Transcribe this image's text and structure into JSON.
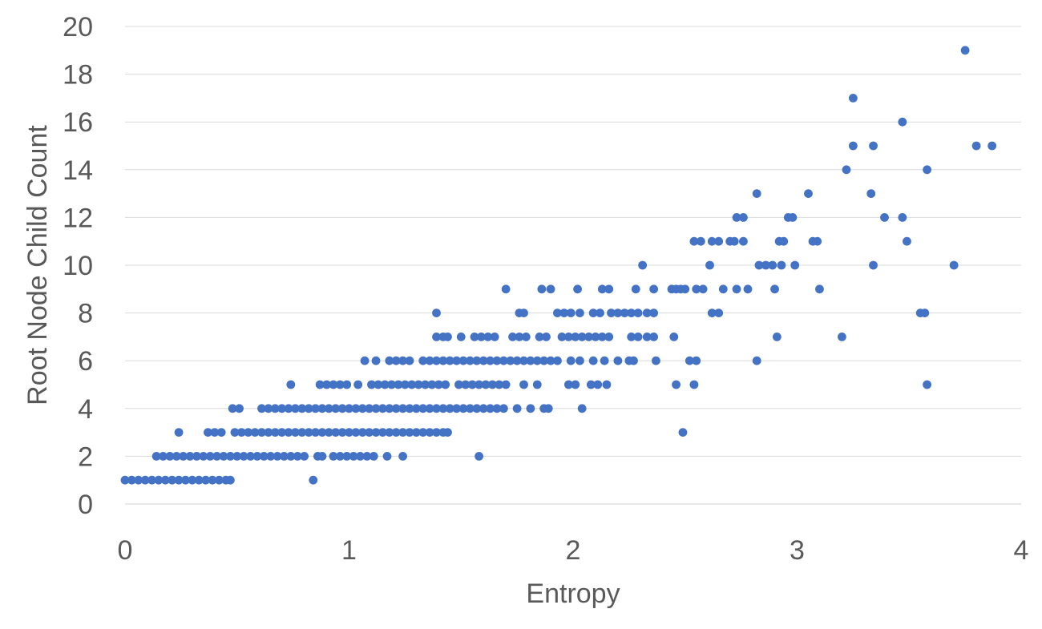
{
  "chart_data": {
    "type": "scatter",
    "title": "",
    "xlabel": "Entropy",
    "ylabel": "Root Node Child Count",
    "xlim": [
      0,
      4
    ],
    "ylim": [
      0,
      20
    ],
    "x_ticks": [
      "0",
      "1",
      "2",
      "3",
      "4"
    ],
    "y_ticks": [
      "0",
      "2",
      "4",
      "6",
      "8",
      "10",
      "12",
      "14",
      "16",
      "18",
      "20"
    ],
    "grid": "horizontal",
    "legend": "none",
    "marker_color": "#4472c4",
    "series": [
      {
        "points": [
          [
            0.0,
            1
          ],
          [
            0.03,
            1
          ],
          [
            0.06,
            1
          ],
          [
            0.09,
            1
          ],
          [
            0.12,
            1
          ],
          [
            0.15,
            1
          ],
          [
            0.18,
            1
          ],
          [
            0.21,
            1
          ],
          [
            0.24,
            1
          ],
          [
            0.27,
            1
          ],
          [
            0.3,
            1
          ],
          [
            0.33,
            1
          ],
          [
            0.36,
            1
          ],
          [
            0.39,
            1
          ],
          [
            0.42,
            1
          ],
          [
            0.45,
            1
          ],
          [
            0.47,
            1
          ],
          [
            0.84,
            1
          ],
          [
            0.14,
            2
          ],
          [
            0.17,
            2
          ],
          [
            0.2,
            2
          ],
          [
            0.23,
            2
          ],
          [
            0.26,
            2
          ],
          [
            0.29,
            2
          ],
          [
            0.32,
            2
          ],
          [
            0.35,
            2
          ],
          [
            0.38,
            2
          ],
          [
            0.41,
            2
          ],
          [
            0.44,
            2
          ],
          [
            0.47,
            2
          ],
          [
            0.5,
            2
          ],
          [
            0.53,
            2
          ],
          [
            0.56,
            2
          ],
          [
            0.59,
            2
          ],
          [
            0.62,
            2
          ],
          [
            0.65,
            2
          ],
          [
            0.68,
            2
          ],
          [
            0.71,
            2
          ],
          [
            0.74,
            2
          ],
          [
            0.77,
            2
          ],
          [
            0.8,
            2
          ],
          [
            0.86,
            2
          ],
          [
            0.88,
            2
          ],
          [
            0.93,
            2
          ],
          [
            0.96,
            2
          ],
          [
            0.99,
            2
          ],
          [
            1.02,
            2
          ],
          [
            1.05,
            2
          ],
          [
            1.08,
            2
          ],
          [
            1.11,
            2
          ],
          [
            1.17,
            2
          ],
          [
            1.24,
            2
          ],
          [
            1.58,
            2
          ],
          [
            0.24,
            3
          ],
          [
            0.37,
            3
          ],
          [
            0.4,
            3
          ],
          [
            0.43,
            3
          ],
          [
            0.49,
            3
          ],
          [
            0.52,
            3
          ],
          [
            0.55,
            3
          ],
          [
            0.58,
            3
          ],
          [
            0.61,
            3
          ],
          [
            0.64,
            3
          ],
          [
            0.67,
            3
          ],
          [
            0.7,
            3
          ],
          [
            0.73,
            3
          ],
          [
            0.76,
            3
          ],
          [
            0.79,
            3
          ],
          [
            0.82,
            3
          ],
          [
            0.85,
            3
          ],
          [
            0.88,
            3
          ],
          [
            0.91,
            3
          ],
          [
            0.94,
            3
          ],
          [
            0.97,
            3
          ],
          [
            1.0,
            3
          ],
          [
            1.03,
            3
          ],
          [
            1.06,
            3
          ],
          [
            1.09,
            3
          ],
          [
            1.12,
            3
          ],
          [
            1.15,
            3
          ],
          [
            1.18,
            3
          ],
          [
            1.21,
            3
          ],
          [
            1.24,
            3
          ],
          [
            1.27,
            3
          ],
          [
            1.3,
            3
          ],
          [
            1.33,
            3
          ],
          [
            1.36,
            3
          ],
          [
            1.39,
            3
          ],
          [
            1.42,
            3
          ],
          [
            1.44,
            3
          ],
          [
            2.49,
            3
          ],
          [
            0.48,
            4
          ],
          [
            0.51,
            4
          ],
          [
            0.61,
            4
          ],
          [
            0.64,
            4
          ],
          [
            0.67,
            4
          ],
          [
            0.7,
            4
          ],
          [
            0.73,
            4
          ],
          [
            0.76,
            4
          ],
          [
            0.79,
            4
          ],
          [
            0.82,
            4
          ],
          [
            0.85,
            4
          ],
          [
            0.88,
            4
          ],
          [
            0.91,
            4
          ],
          [
            0.94,
            4
          ],
          [
            0.97,
            4
          ],
          [
            1.0,
            4
          ],
          [
            1.03,
            4
          ],
          [
            1.06,
            4
          ],
          [
            1.09,
            4
          ],
          [
            1.12,
            4
          ],
          [
            1.15,
            4
          ],
          [
            1.18,
            4
          ],
          [
            1.21,
            4
          ],
          [
            1.24,
            4
          ],
          [
            1.27,
            4
          ],
          [
            1.3,
            4
          ],
          [
            1.33,
            4
          ],
          [
            1.36,
            4
          ],
          [
            1.39,
            4
          ],
          [
            1.42,
            4
          ],
          [
            1.45,
            4
          ],
          [
            1.48,
            4
          ],
          [
            1.51,
            4
          ],
          [
            1.54,
            4
          ],
          [
            1.57,
            4
          ],
          [
            1.6,
            4
          ],
          [
            1.63,
            4
          ],
          [
            1.66,
            4
          ],
          [
            1.69,
            4
          ],
          [
            1.75,
            4
          ],
          [
            1.81,
            4
          ],
          [
            1.87,
            4
          ],
          [
            1.89,
            4
          ],
          [
            2.04,
            4
          ],
          [
            0.74,
            5
          ],
          [
            0.87,
            5
          ],
          [
            0.9,
            5
          ],
          [
            0.93,
            5
          ],
          [
            0.96,
            5
          ],
          [
            0.99,
            5
          ],
          [
            1.04,
            5
          ],
          [
            1.1,
            5
          ],
          [
            1.13,
            5
          ],
          [
            1.16,
            5
          ],
          [
            1.19,
            5
          ],
          [
            1.22,
            5
          ],
          [
            1.25,
            5
          ],
          [
            1.28,
            5
          ],
          [
            1.31,
            5
          ],
          [
            1.34,
            5
          ],
          [
            1.37,
            5
          ],
          [
            1.4,
            5
          ],
          [
            1.43,
            5
          ],
          [
            1.49,
            5
          ],
          [
            1.52,
            5
          ],
          [
            1.55,
            5
          ],
          [
            1.58,
            5
          ],
          [
            1.61,
            5
          ],
          [
            1.64,
            5
          ],
          [
            1.67,
            5
          ],
          [
            1.7,
            5
          ],
          [
            1.78,
            5
          ],
          [
            1.84,
            5
          ],
          [
            1.98,
            5
          ],
          [
            2.01,
            5
          ],
          [
            2.08,
            5
          ],
          [
            2.11,
            5
          ],
          [
            2.15,
            5
          ],
          [
            2.46,
            5
          ],
          [
            2.54,
            5
          ],
          [
            3.58,
            5
          ],
          [
            1.07,
            6
          ],
          [
            1.12,
            6
          ],
          [
            1.18,
            6
          ],
          [
            1.21,
            6
          ],
          [
            1.24,
            6
          ],
          [
            1.27,
            6
          ],
          [
            1.33,
            6
          ],
          [
            1.36,
            6
          ],
          [
            1.39,
            6
          ],
          [
            1.42,
            6
          ],
          [
            1.45,
            6
          ],
          [
            1.48,
            6
          ],
          [
            1.51,
            6
          ],
          [
            1.54,
            6
          ],
          [
            1.57,
            6
          ],
          [
            1.6,
            6
          ],
          [
            1.63,
            6
          ],
          [
            1.66,
            6
          ],
          [
            1.69,
            6
          ],
          [
            1.72,
            6
          ],
          [
            1.75,
            6
          ],
          [
            1.78,
            6
          ],
          [
            1.81,
            6
          ],
          [
            1.84,
            6
          ],
          [
            1.87,
            6
          ],
          [
            1.9,
            6
          ],
          [
            1.93,
            6
          ],
          [
            1.99,
            6
          ],
          [
            2.03,
            6
          ],
          [
            2.09,
            6
          ],
          [
            2.14,
            6
          ],
          [
            2.2,
            6
          ],
          [
            2.25,
            6
          ],
          [
            2.27,
            6
          ],
          [
            2.37,
            6
          ],
          [
            2.52,
            6
          ],
          [
            2.55,
            6
          ],
          [
            2.82,
            6
          ],
          [
            1.39,
            7
          ],
          [
            1.42,
            7
          ],
          [
            1.44,
            7
          ],
          [
            1.5,
            7
          ],
          [
            1.56,
            7
          ],
          [
            1.59,
            7
          ],
          [
            1.62,
            7
          ],
          [
            1.65,
            7
          ],
          [
            1.73,
            7
          ],
          [
            1.76,
            7
          ],
          [
            1.79,
            7
          ],
          [
            1.85,
            7
          ],
          [
            1.88,
            7
          ],
          [
            1.95,
            7
          ],
          [
            1.98,
            7
          ],
          [
            2.01,
            7
          ],
          [
            2.04,
            7
          ],
          [
            2.07,
            7
          ],
          [
            2.1,
            7
          ],
          [
            2.13,
            7
          ],
          [
            2.16,
            7
          ],
          [
            2.26,
            7
          ],
          [
            2.29,
            7
          ],
          [
            2.33,
            7
          ],
          [
            2.36,
            7
          ],
          [
            2.45,
            7
          ],
          [
            2.91,
            7
          ],
          [
            3.2,
            7
          ],
          [
            1.39,
            8
          ],
          [
            1.76,
            8
          ],
          [
            1.78,
            8
          ],
          [
            1.93,
            8
          ],
          [
            1.96,
            8
          ],
          [
            1.99,
            8
          ],
          [
            2.03,
            8
          ],
          [
            2.09,
            8
          ],
          [
            2.12,
            8
          ],
          [
            2.17,
            8
          ],
          [
            2.2,
            8
          ],
          [
            2.23,
            8
          ],
          [
            2.26,
            8
          ],
          [
            2.29,
            8
          ],
          [
            2.33,
            8
          ],
          [
            2.36,
            8
          ],
          [
            2.62,
            8
          ],
          [
            2.65,
            8
          ],
          [
            3.55,
            8
          ],
          [
            3.57,
            8
          ],
          [
            1.7,
            9
          ],
          [
            1.86,
            9
          ],
          [
            1.9,
            9
          ],
          [
            2.02,
            9
          ],
          [
            2.13,
            9
          ],
          [
            2.16,
            9
          ],
          [
            2.28,
            9
          ],
          [
            2.36,
            9
          ],
          [
            2.44,
            9
          ],
          [
            2.46,
            9
          ],
          [
            2.48,
            9
          ],
          [
            2.5,
            9
          ],
          [
            2.55,
            9
          ],
          [
            2.58,
            9
          ],
          [
            2.67,
            9
          ],
          [
            2.73,
            9
          ],
          [
            2.78,
            9
          ],
          [
            2.9,
            9
          ],
          [
            3.1,
            9
          ],
          [
            2.31,
            10
          ],
          [
            2.61,
            10
          ],
          [
            2.83,
            10
          ],
          [
            2.86,
            10
          ],
          [
            2.89,
            10
          ],
          [
            2.93,
            10
          ],
          [
            2.99,
            10
          ],
          [
            3.34,
            10
          ],
          [
            3.7,
            10
          ],
          [
            2.54,
            11
          ],
          [
            2.57,
            11
          ],
          [
            2.62,
            11
          ],
          [
            2.65,
            11
          ],
          [
            2.7,
            11
          ],
          [
            2.72,
            11
          ],
          [
            2.76,
            11
          ],
          [
            2.92,
            11
          ],
          [
            2.94,
            11
          ],
          [
            3.07,
            11
          ],
          [
            3.09,
            11
          ],
          [
            3.49,
            11
          ],
          [
            2.73,
            12
          ],
          [
            2.76,
            12
          ],
          [
            2.96,
            12
          ],
          [
            2.98,
            12
          ],
          [
            3.39,
            12
          ],
          [
            3.47,
            12
          ],
          [
            2.82,
            13
          ],
          [
            3.05,
            13
          ],
          [
            3.33,
            13
          ],
          [
            3.22,
            14
          ],
          [
            3.58,
            14
          ],
          [
            3.25,
            15
          ],
          [
            3.34,
            15
          ],
          [
            3.8,
            15
          ],
          [
            3.87,
            15
          ],
          [
            3.47,
            16
          ],
          [
            3.25,
            17
          ],
          [
            3.75,
            19
          ]
        ]
      }
    ]
  }
}
